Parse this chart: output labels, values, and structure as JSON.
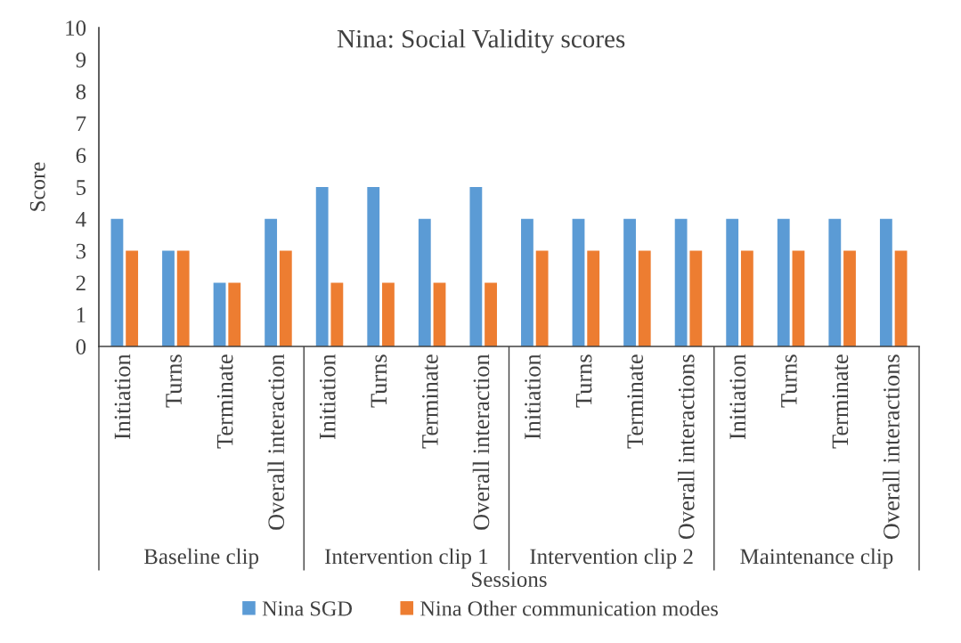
{
  "chart_data": {
    "type": "bar",
    "title": "Nina: Social Validity scores",
    "xlabel": "Sessions",
    "ylabel": "Score",
    "categories": [
      "Initiation",
      "Turns",
      "Terminate",
      "Overall interaction",
      "Initiation",
      "Turns",
      "Terminate",
      "Overall interaction",
      "Initiation",
      "Turns",
      "Terminate",
      "Overall interactions",
      "Initiation",
      "Turns",
      "Terminate",
      "Overall interactions"
    ],
    "series": [
      {
        "name": "Nina SGD",
        "color": "#5b9bd5",
        "values": [
          4,
          3,
          2,
          4,
          5,
          5,
          4,
          5,
          4,
          4,
          4,
          4,
          4,
          4,
          4,
          4
        ]
      },
      {
        "name": "Nina Other communication modes",
        "color": "#ed7d31",
        "values": [
          3,
          3,
          2,
          3,
          2,
          2,
          2,
          2,
          3,
          3,
          3,
          3,
          3,
          3,
          3,
          3
        ]
      }
    ],
    "ylim": [
      0,
      10
    ],
    "yticks": [
      0,
      1,
      2,
      3,
      4,
      5,
      6,
      7,
      8,
      9,
      10
    ],
    "grid": false,
    "legend": "bottom",
    "annotations": [
      "Baseline clip",
      "Intervention clip 1",
      "Intervention clip 2",
      "Maintenance clip"
    ]
  }
}
